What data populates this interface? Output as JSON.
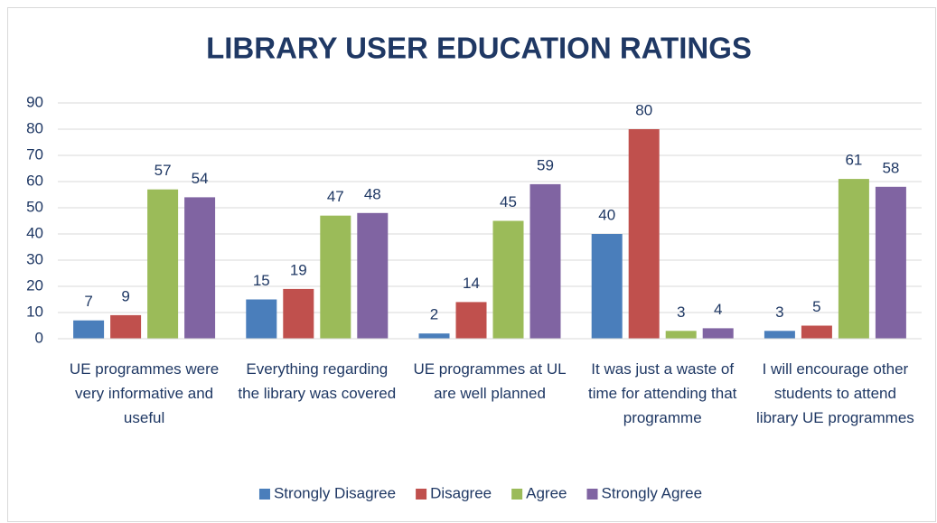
{
  "chart_data": {
    "type": "bar",
    "title": "LIBRARY USER EDUCATION RATINGS",
    "categories": [
      "UE programmes were very informative and useful",
      "Everything regarding the library was covered",
      "UE programmes at UL are well planned",
      "It was just a waste of time for attending that programme",
      "I will encourage other students to attend library UE programmes"
    ],
    "series": [
      {
        "name": "Strongly Disagree",
        "color": "#4a7ebb",
        "values": [
          7,
          15,
          2,
          40,
          3
        ]
      },
      {
        "name": "Disagree",
        "color": "#c0504d",
        "values": [
          9,
          19,
          14,
          80,
          5
        ]
      },
      {
        "name": "Agree",
        "color": "#9bbb59",
        "values": [
          57,
          47,
          45,
          3,
          61
        ]
      },
      {
        "name": "Strongly Agree",
        "color": "#8064a2",
        "values": [
          54,
          48,
          59,
          4,
          58
        ]
      }
    ],
    "ylim": [
      0,
      90
    ],
    "yticks": [
      0,
      10,
      20,
      30,
      40,
      50,
      60,
      70,
      80,
      90
    ],
    "grid": true,
    "legend": "bottom"
  }
}
